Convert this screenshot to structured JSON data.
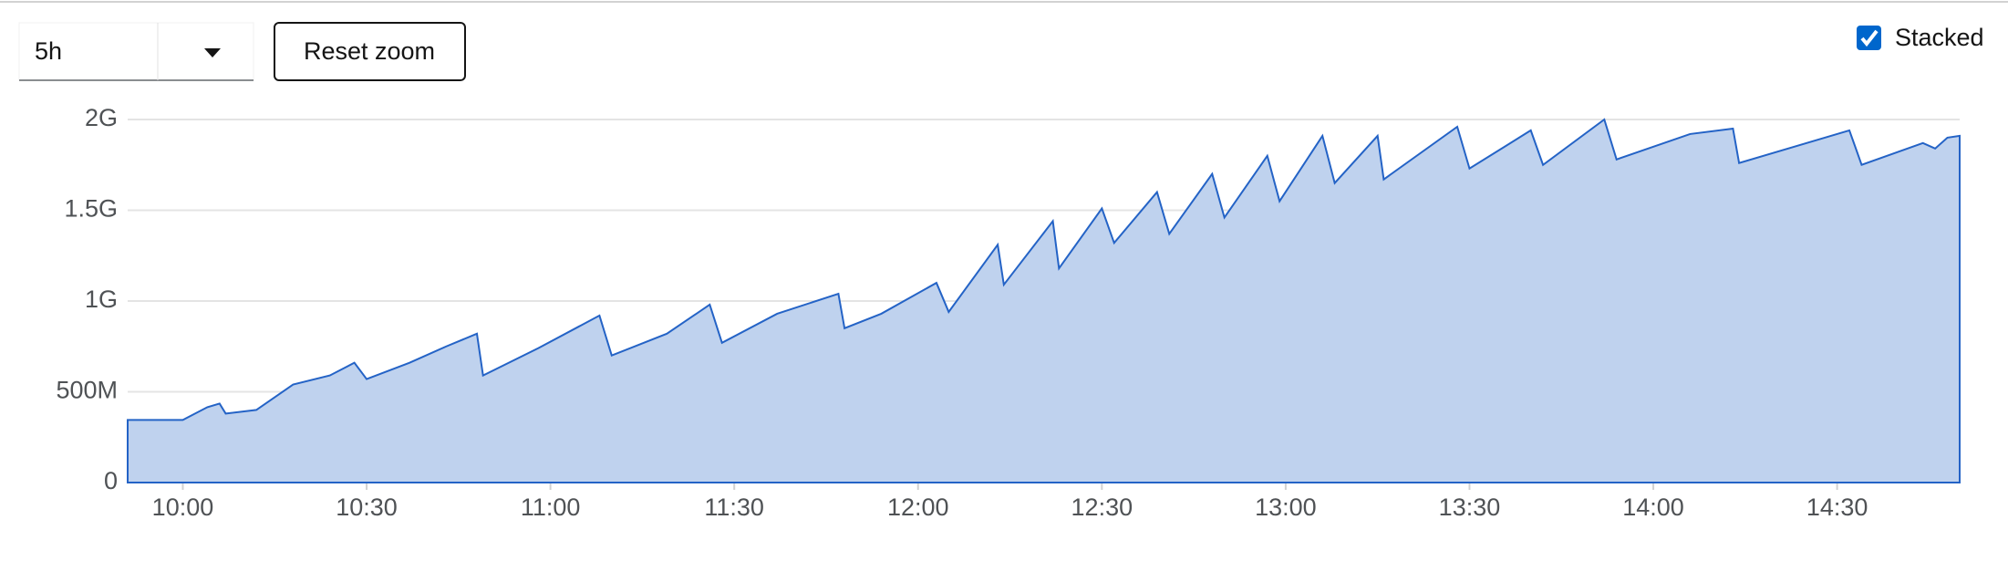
{
  "controls": {
    "range": "5h",
    "reset": "Reset zoom",
    "stacked": "Stacked"
  },
  "chart_data": {
    "type": "area",
    "color": "#2463c6",
    "fill": "#bfd2ee",
    "grid": true,
    "xlim": [
      "09:51",
      "14:50"
    ],
    "xticks": [
      "10:00",
      "10:30",
      "11:00",
      "11:30",
      "12:00",
      "12:30",
      "13:00",
      "13:30",
      "14:00",
      "14:30"
    ],
    "ylim": [
      0,
      2000000000
    ],
    "yticks": [
      0,
      {
        "value": 500000000,
        "label": "500M"
      },
      {
        "value": 1000000000,
        "label": "1G"
      },
      {
        "value": 1500000000,
        "label": "1.5G"
      },
      {
        "value": 2000000000,
        "label": "2G"
      }
    ],
    "x": [
      "09:51",
      "10:00",
      "10:04",
      "10:06",
      "10:07",
      "10:12",
      "10:18",
      "10:24",
      "10:28",
      "10:30",
      "10:37",
      "10:43",
      "10:48",
      "10:49",
      "10:58",
      "11:08",
      "11:10",
      "11:19",
      "11:26",
      "11:28",
      "11:37",
      "11:47",
      "11:48",
      "11:54",
      "12:03",
      "12:05",
      "12:13",
      "12:14",
      "12:22",
      "12:23",
      "12:30",
      "12:32",
      "12:39",
      "12:41",
      "12:48",
      "12:50",
      "12:57",
      "12:59",
      "13:06",
      "13:08",
      "13:15",
      "13:16",
      "13:28",
      "13:30",
      "13:40",
      "13:42",
      "13:52",
      "13:54",
      "14:06",
      "14:13",
      "14:14",
      "14:32",
      "14:34",
      "14:44",
      "14:46",
      "14:48",
      "14:50"
    ],
    "values": [
      345000000,
      345000000,
      415000000,
      435000000,
      380000000,
      400000000,
      540000000,
      590000000,
      660000000,
      570000000,
      660000000,
      750000000,
      820000000,
      590000000,
      740000000,
      920000000,
      700000000,
      820000000,
      980000000,
      770000000,
      930000000,
      1040000000,
      850000000,
      930000000,
      1100000000,
      940000000,
      1310000000,
      1090000000,
      1440000000,
      1180000000,
      1510000000,
      1320000000,
      1600000000,
      1370000000,
      1700000000,
      1460000000,
      1800000000,
      1550000000,
      1910000000,
      1650000000,
      1910000000,
      1670000000,
      1960000000,
      1730000000,
      1940000000,
      1750000000,
      2000000000,
      1780000000,
      1920000000,
      1950000000,
      1760000000,
      1940000000,
      1750000000,
      1870000000,
      1840000000,
      1900000000,
      1910000000
    ]
  }
}
